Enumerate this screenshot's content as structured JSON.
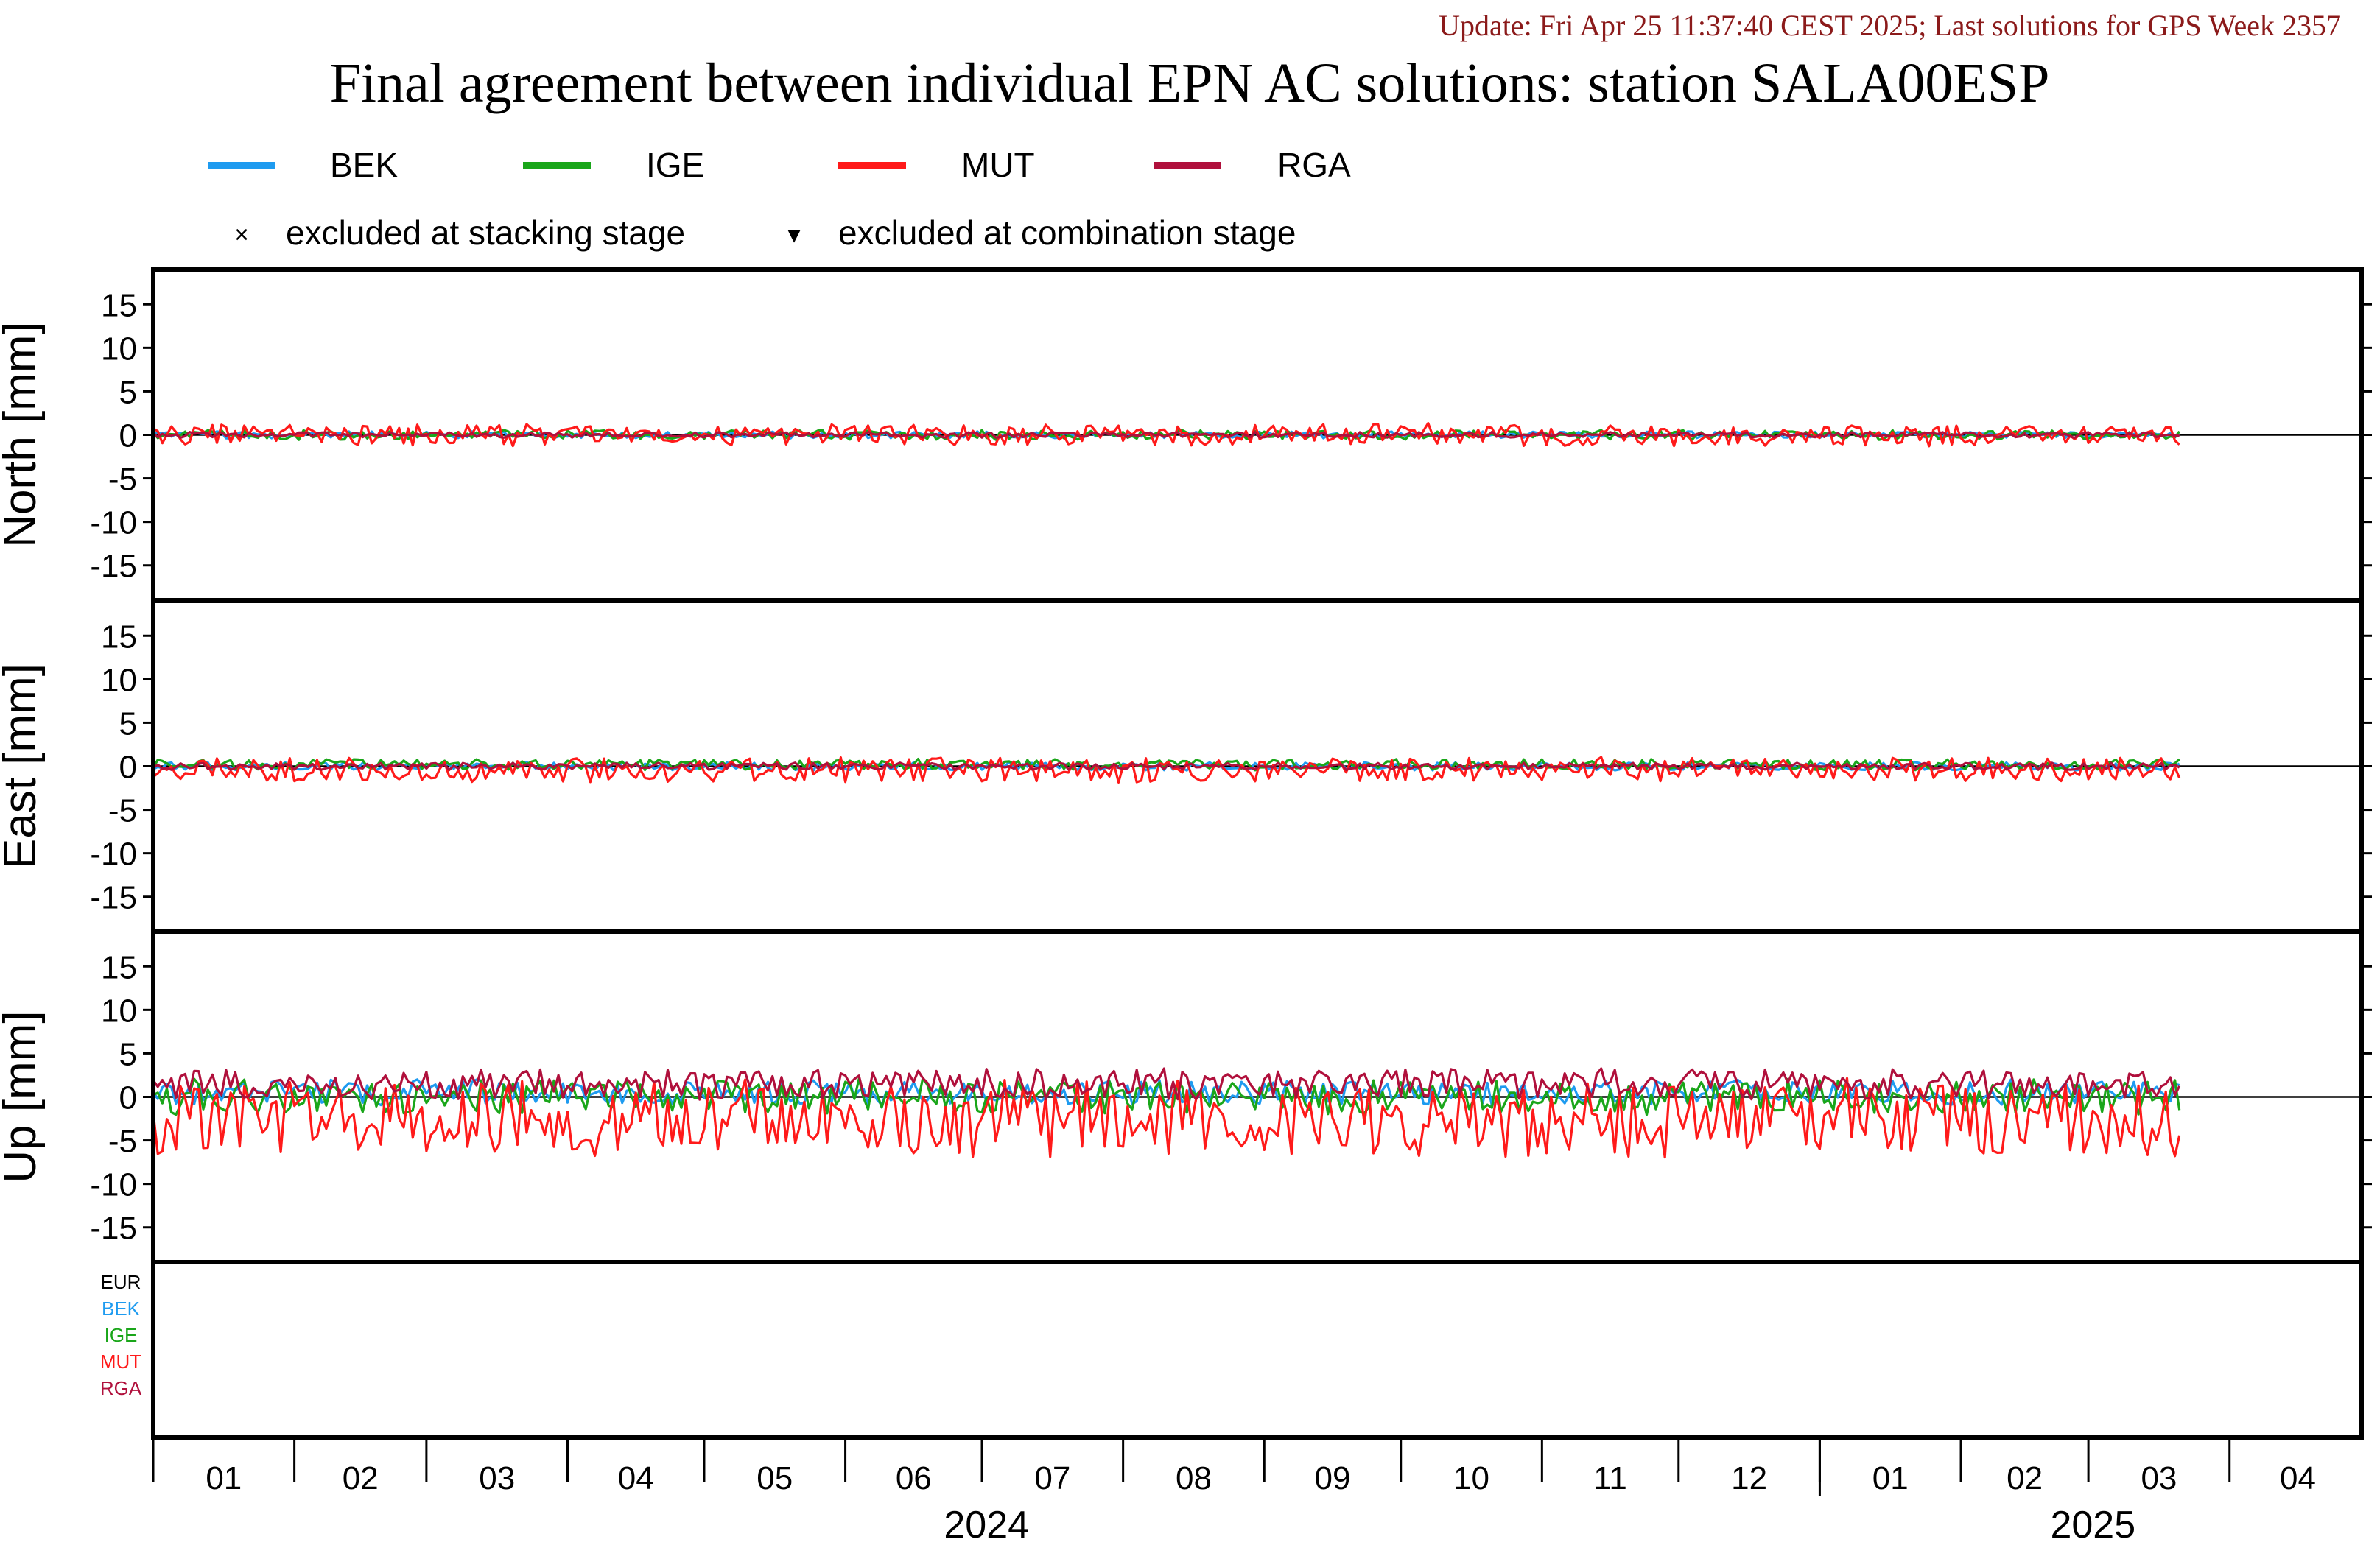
{
  "update_text": "Update: Fri Apr 25 11:37:40 CEST 2025; Last solutions for GPS Week 2357",
  "title": "Final agreement between individual EPN AC solutions: station SALA00ESP",
  "colors": {
    "update": "#8b1a1a",
    "BEK": "#1e9bf0",
    "IGE": "#1aa61a",
    "MUT": "#ff1a1a",
    "RGA": "#b0103c",
    "EUR": "#000000"
  },
  "legend": {
    "entries": [
      {
        "name": "BEK",
        "color": "#1e9bf0"
      },
      {
        "name": "IGE",
        "color": "#1aa61a"
      },
      {
        "name": "MUT",
        "color": "#ff1a1a"
      },
      {
        "name": "RGA",
        "color": "#b0103c"
      }
    ],
    "markers": [
      {
        "symbol": "×",
        "label": "excluded at stacking stage"
      },
      {
        "symbol": "▾",
        "label": "excluded at combination stage"
      }
    ]
  },
  "status_labels": [
    {
      "name": "EUR",
      "color": "#000000"
    },
    {
      "name": "BEK",
      "color": "#1e9bf0"
    },
    {
      "name": "IGE",
      "color": "#1aa61a"
    },
    {
      "name": "MUT",
      "color": "#ff1a1a"
    },
    {
      "name": "RGA",
      "color": "#b0103c"
    }
  ],
  "chart_data": {
    "type": "line",
    "x_unit": "days since 2024-01-01",
    "x_range": [
      0,
      485
    ],
    "month_ticks": [
      "01",
      "02",
      "03",
      "04",
      "05",
      "06",
      "07",
      "08",
      "09",
      "10",
      "11",
      "12",
      "01",
      "02",
      "03",
      "04"
    ],
    "years": [
      {
        "label": "2024",
        "month": 1
      },
      {
        "label": "2025",
        "month": 1
      }
    ],
    "grid": false,
    "legend_position": "top",
    "panels": [
      {
        "key": "north",
        "ylabel": "North [mm]",
        "ylim": [
          -19,
          19
        ],
        "yticks": [
          15,
          10,
          5,
          0,
          -5,
          -10,
          -15
        ],
        "series_summary": [
          {
            "name": "BEK",
            "mean": 0,
            "amplitude": 0.5
          },
          {
            "name": "IGE",
            "mean": 0,
            "amplitude": 0.7
          },
          {
            "name": "MUT",
            "mean": 0,
            "amplitude": 1.6
          },
          {
            "name": "RGA",
            "mean": 0,
            "amplitude": 0.4
          }
        ]
      },
      {
        "key": "east",
        "ylabel": "East [mm]",
        "ylim": [
          -19,
          19
        ],
        "yticks": [
          15,
          10,
          5,
          0,
          -5,
          -10,
          -15
        ],
        "series_summary": [
          {
            "name": "BEK",
            "mean": 0,
            "amplitude": 0.6
          },
          {
            "name": "IGE",
            "mean": 0.2,
            "amplitude": 0.8
          },
          {
            "name": "MUT",
            "mean": -0.4,
            "amplitude": 1.8
          },
          {
            "name": "RGA",
            "mean": 0,
            "amplitude": 0.5
          }
        ]
      },
      {
        "key": "up",
        "ylabel": "Up [mm]",
        "ylim": [
          -19,
          19
        ],
        "yticks": [
          15,
          10,
          5,
          0,
          -5,
          -10,
          -15
        ],
        "series_summary": [
          {
            "name": "BEK",
            "mean": 0.5,
            "amplitude": 1.8
          },
          {
            "name": "IGE",
            "mean": 0,
            "amplitude": 2.6
          },
          {
            "name": "MUT",
            "mean": -2.5,
            "amplitude": 5.5
          },
          {
            "name": "RGA",
            "mean": 1.5,
            "amplitude": 2.2
          }
        ]
      }
    ],
    "data_range_days": [
      0,
      445
    ]
  }
}
